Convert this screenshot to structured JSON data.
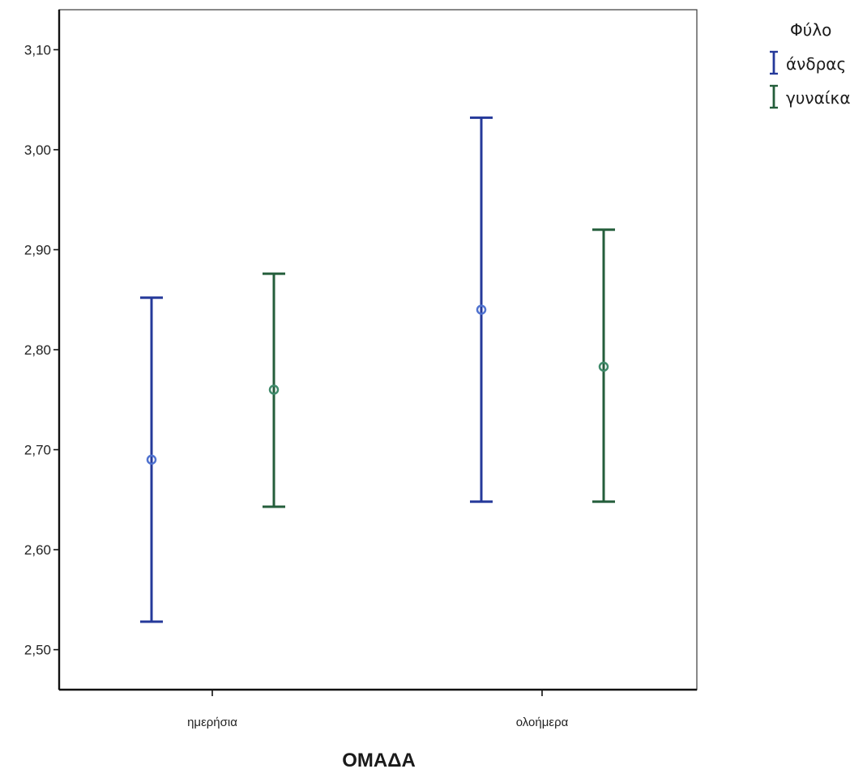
{
  "chart_data": {
    "type": "errorbar",
    "xlabel": "ΟΜΑΔΑ",
    "ylabel": "",
    "categories": [
      "ημερήσια",
      "ολοήμερα"
    ],
    "ylim": [
      2.46,
      3.14
    ],
    "yticks": [
      "2,50",
      "2,60",
      "2,70",
      "2,80",
      "2,90",
      "3,00",
      "3,10"
    ],
    "ytick_values": [
      2.5,
      2.6,
      2.7,
      2.8,
      2.9,
      3.0,
      3.1
    ],
    "grid": false,
    "legend": {
      "title": "Φύλο",
      "placement": "top-right, outside plot"
    },
    "series": [
      {
        "name": "άνδρας",
        "color": "#25399a",
        "marker_color": "#4f72cf",
        "points": [
          {
            "category": "ημερήσια",
            "mean": 2.69,
            "lower": 2.528,
            "upper": 2.852
          },
          {
            "category": "ολοήμερα",
            "mean": 2.84,
            "lower": 2.648,
            "upper": 3.032
          }
        ]
      },
      {
        "name": "γυναίκα",
        "color": "#245e3b",
        "marker_color": "#3f8a6a",
        "points": [
          {
            "category": "ημερήσια",
            "mean": 2.76,
            "lower": 2.643,
            "upper": 2.876
          },
          {
            "category": "ολοήμερα",
            "mean": 2.783,
            "lower": 2.648,
            "upper": 2.92
          }
        ]
      }
    ]
  }
}
